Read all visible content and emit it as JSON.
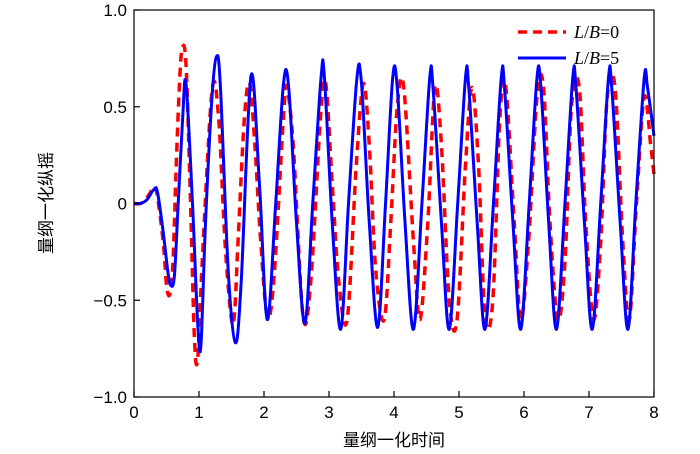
{
  "chart_data": {
    "type": "line",
    "xlabel": "量纲一化时间",
    "ylabel": "量纲一化纵摇",
    "xlim": [
      0,
      8
    ],
    "ylim": [
      -1.0,
      1.0
    ],
    "x_ticks": [
      "0",
      "1",
      "2",
      "3",
      "4",
      "5",
      "6",
      "7",
      "8"
    ],
    "y_ticks": [
      "−1.0",
      "−0.5",
      "0",
      "0.5",
      "1.0"
    ],
    "grid": false,
    "legend_position": "top-right",
    "series": [
      {
        "name": "L/B=0",
        "legend_parts": [
          "L",
          "/",
          "B",
          "=0"
        ],
        "color": "#ff0000",
        "dash": "dashed",
        "x": [
          0,
          0.1,
          0.2,
          0.3,
          0.35,
          0.45,
          0.5,
          0.55,
          0.6,
          0.65,
          0.7,
          0.74,
          0.8,
          0.87,
          0.93,
          0.98,
          1.05,
          1.2,
          1.3,
          1.4,
          1.5,
          1.55,
          1.6,
          1.7,
          1.78,
          1.86,
          1.95,
          2.05,
          2.15,
          2.3,
          2.35,
          2.45,
          2.6,
          2.72,
          2.87,
          2.95,
          3.05,
          3.15,
          3.28,
          3.42,
          3.53,
          3.62,
          3.72,
          3.85,
          3.95,
          4.05,
          4.15,
          4.3,
          4.4,
          4.52,
          4.63,
          4.73,
          4.85,
          4.97,
          5.1,
          5.2,
          5.3,
          5.4,
          5.52,
          5.63,
          5.72,
          5.85,
          5.95,
          6.07,
          6.2,
          6.3,
          6.4,
          6.52,
          6.63,
          6.73,
          6.85,
          6.95,
          7.07,
          7.18,
          7.28,
          7.4,
          7.52,
          7.62,
          7.73,
          7.85,
          7.95,
          8.0
        ],
        "y": [
          0.0,
          0.0,
          0.03,
          0.08,
          0.06,
          -0.2,
          -0.42,
          -0.47,
          -0.3,
          0.2,
          0.62,
          0.8,
          0.72,
          0.0,
          -0.7,
          -0.8,
          -0.3,
          0.58,
          0.45,
          -0.2,
          -0.6,
          -0.55,
          -0.2,
          0.45,
          0.62,
          0.3,
          -0.2,
          -0.58,
          -0.4,
          0.45,
          0.6,
          0.3,
          -0.58,
          -0.4,
          0.45,
          0.62,
          0.1,
          -0.4,
          -0.6,
          0.2,
          0.62,
          0.3,
          -0.35,
          -0.6,
          -0.1,
          0.5,
          0.6,
          -0.2,
          -0.6,
          -0.1,
          0.6,
          0.3,
          -0.5,
          -0.6,
          0.2,
          0.6,
          0.2,
          -0.58,
          -0.5,
          0.45,
          0.6,
          -0.1,
          -0.6,
          -0.2,
          0.55,
          0.6,
          -0.1,
          -0.6,
          -0.3,
          0.5,
          0.6,
          -0.1,
          -0.6,
          -0.2,
          0.55,
          0.6,
          -0.2,
          -0.6,
          0.0,
          0.55,
          0.3,
          0.15
        ]
      },
      {
        "name": "L/B=5",
        "legend_parts": [
          "L",
          "/",
          "B",
          "=5"
        ],
        "color": "#0000ff",
        "dash": "solid",
        "x": [
          0,
          0.1,
          0.2,
          0.3,
          0.36,
          0.45,
          0.52,
          0.56,
          0.62,
          0.68,
          0.75,
          0.8,
          0.9,
          0.98,
          1.03,
          1.1,
          1.2,
          1.27,
          1.33,
          1.45,
          1.56,
          1.65,
          1.8,
          1.93,
          2.05,
          2.18,
          2.3,
          2.38,
          2.5,
          2.63,
          2.75,
          2.88,
          2.93,
          3.05,
          3.18,
          3.3,
          3.43,
          3.5,
          3.62,
          3.75,
          3.87,
          3.98,
          4.05,
          4.17,
          4.3,
          4.43,
          4.55,
          4.6,
          4.73,
          4.85,
          4.98,
          5.1,
          5.15,
          5.28,
          5.4,
          5.53,
          5.65,
          5.7,
          5.83,
          5.95,
          6.08,
          6.2,
          6.26,
          6.38,
          6.5,
          6.63,
          6.75,
          6.8,
          6.93,
          7.05,
          7.18,
          7.3,
          7.35,
          7.48,
          7.6,
          7.72,
          7.85,
          7.9,
          8.0
        ],
        "y": [
          0.0,
          0.0,
          0.02,
          0.07,
          0.06,
          -0.15,
          -0.35,
          -0.42,
          -0.38,
          0.0,
          0.45,
          0.62,
          0.0,
          -0.62,
          -0.73,
          -0.1,
          0.55,
          0.76,
          0.6,
          -0.35,
          -0.72,
          -0.4,
          0.66,
          0.1,
          -0.6,
          0.0,
          0.62,
          0.6,
          -0.1,
          -0.62,
          0.0,
          0.66,
          0.65,
          -0.1,
          -0.65,
          0.0,
          0.65,
          0.62,
          -0.1,
          -0.64,
          0.0,
          0.65,
          0.6,
          -0.1,
          -0.65,
          0.0,
          0.65,
          0.6,
          -0.1,
          -0.65,
          0.0,
          0.65,
          0.6,
          -0.1,
          -0.65,
          0.0,
          0.65,
          0.6,
          -0.1,
          -0.65,
          0.0,
          0.65,
          0.6,
          -0.1,
          -0.65,
          0.0,
          0.65,
          0.6,
          -0.1,
          -0.65,
          0.0,
          0.65,
          0.6,
          -0.1,
          -0.65,
          0.0,
          0.65,
          0.6,
          0.35
        ]
      }
    ]
  }
}
